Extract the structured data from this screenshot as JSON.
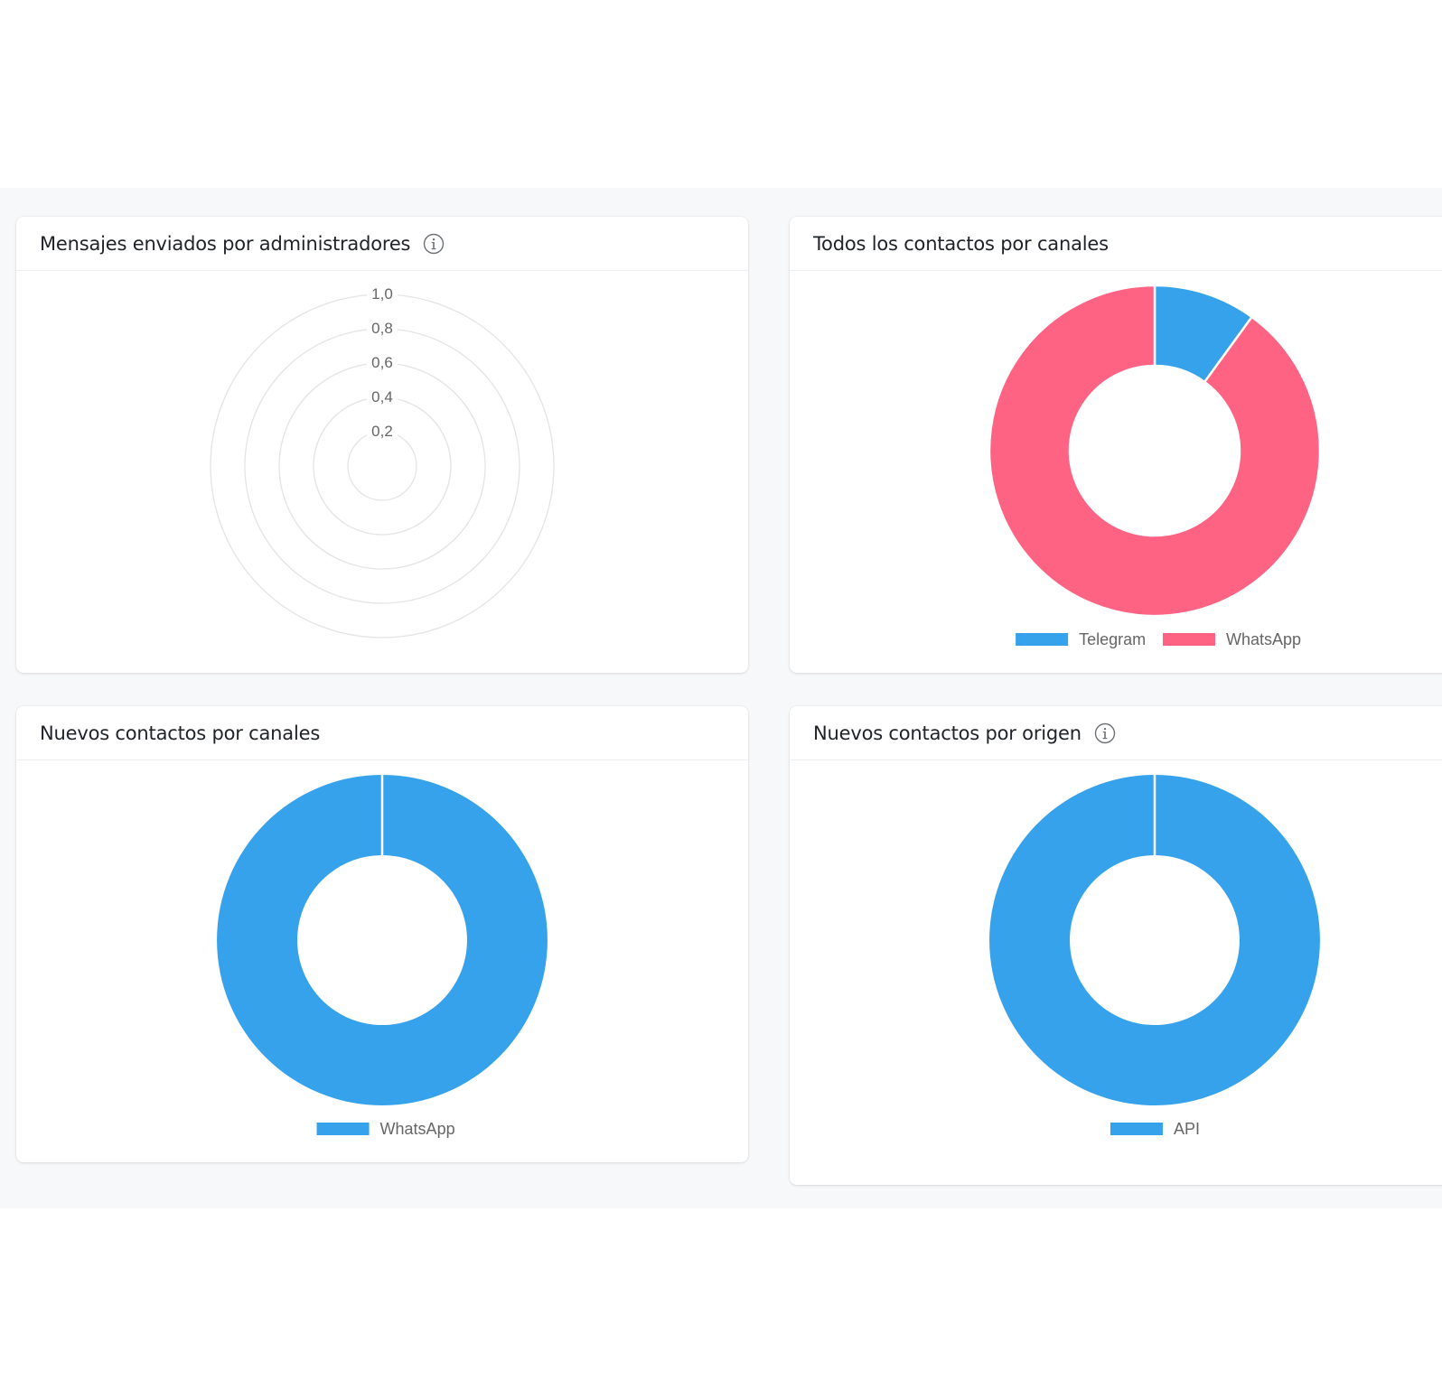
{
  "colors": {
    "blue": "#36a2eb",
    "pink": "#ff6384"
  },
  "icons": {
    "info": "info-icon"
  },
  "chart_data": [
    {
      "type": "radar",
      "title": "Mensajes enviados por administradores",
      "has_info": true,
      "r_ticks": [
        "0,2",
        "0,4",
        "0,6",
        "0,8",
        "1,0"
      ],
      "r_range": [
        0,
        1
      ],
      "labels": [],
      "series": []
    },
    {
      "type": "pie",
      "title": "Todos los contactos por canales",
      "has_info": false,
      "labels": [
        "Telegram",
        "WhatsApp"
      ],
      "values": [
        1,
        9
      ],
      "colors": [
        "#36a2eb",
        "#ff6384"
      ],
      "legend": "bottom"
    },
    {
      "type": "pie",
      "title": "Nuevos contactos por canales",
      "has_info": false,
      "labels": [
        "WhatsApp"
      ],
      "values": [
        1
      ],
      "colors": [
        "#36a2eb"
      ],
      "legend": "bottom"
    },
    {
      "type": "pie",
      "title": "Nuevos contactos por origen",
      "has_info": true,
      "labels": [
        "API"
      ],
      "values": [
        1
      ],
      "colors": [
        "#36a2eb"
      ],
      "legend": "bottom"
    }
  ]
}
